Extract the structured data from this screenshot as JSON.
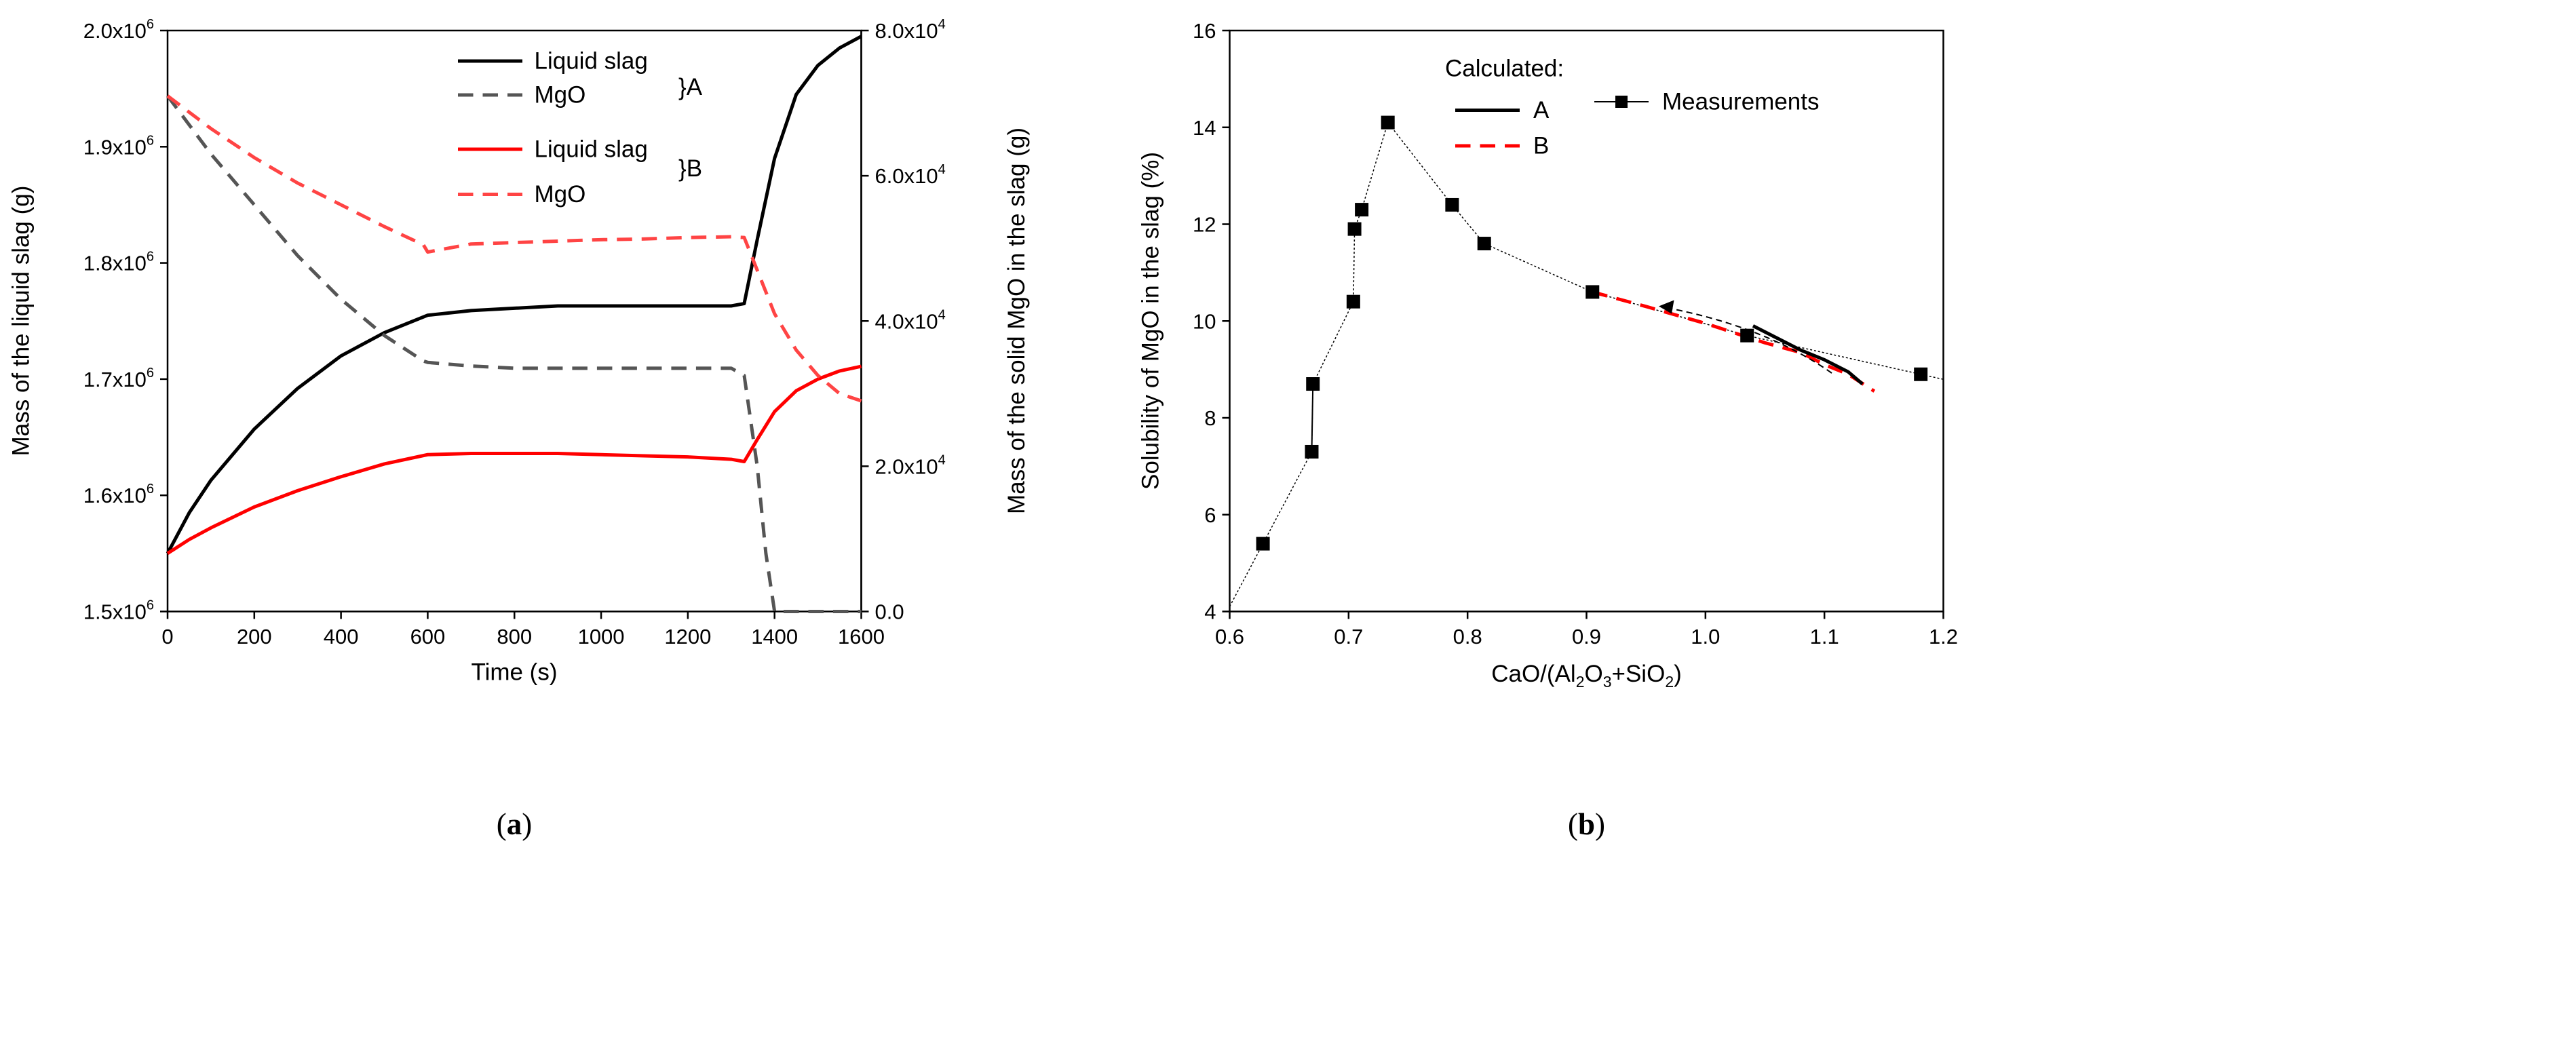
{
  "figure": {
    "panel_labels": [
      {
        "open": "(",
        "letter": "a",
        "close": ")"
      },
      {
        "open": "(",
        "letter": "b",
        "close": ")"
      }
    ]
  },
  "chart_data": [
    {
      "type": "line",
      "panel": "a",
      "xlabel": "Time (s)",
      "ylabel": "Mass of the liquid slag (g)",
      "y2label": "Mass of the solid MgO in the slag (g)",
      "xlim": [
        0,
        1600
      ],
      "ylim": [
        1500000,
        2000000
      ],
      "y2lim": [
        0,
        80000
      ],
      "x_ticks": [
        "0",
        "200",
        "400",
        "600",
        "800",
        "1000",
        "1200",
        "1400",
        "1600"
      ],
      "y_ticks": [
        {
          "mant": "1.5x10",
          "exp": "6"
        },
        {
          "mant": "1.6x10",
          "exp": "6"
        },
        {
          "mant": "1.7x10",
          "exp": "6"
        },
        {
          "mant": "1.8x10",
          "exp": "6"
        },
        {
          "mant": "1.9x10",
          "exp": "6"
        },
        {
          "mant": "2.0x10",
          "exp": "6"
        }
      ],
      "y2_ticks": [
        {
          "mant": "0.0",
          "exp": ""
        },
        {
          "mant": "2.0x10",
          "exp": "4"
        },
        {
          "mant": "4.0x10",
          "exp": "4"
        },
        {
          "mant": "6.0x10",
          "exp": "4"
        },
        {
          "mant": "8.0x10",
          "exp": "4"
        }
      ],
      "legend": {
        "placement": "top-center",
        "group_a": "}A",
        "group_b": "}B",
        "entries": [
          "Liquid slag",
          "MgO",
          "Liquid slag",
          "MgO"
        ]
      },
      "series": [
        {
          "name": "Liquid slag",
          "group": "A",
          "axis": "left",
          "color": "#000000",
          "dash": "solid",
          "x": [
            0,
            50,
            100,
            200,
            300,
            400,
            500,
            600,
            700,
            800,
            900,
            1000,
            1100,
            1200,
            1300,
            1330,
            1360,
            1400,
            1450,
            1500,
            1550,
            1600
          ],
          "y": [
            1550000,
            1585000,
            1613000,
            1657000,
            1692000,
            1720000,
            1740000,
            1755000,
            1759000,
            1761000,
            1763000,
            1763000,
            1763000,
            1763000,
            1763000,
            1765000,
            1820000,
            1890000,
            1945000,
            1970000,
            1985000,
            1995000
          ]
        },
        {
          "name": "MgO",
          "group": "A",
          "axis": "right",
          "color": "#555555",
          "dash": "dashed",
          "x": [
            0,
            100,
            200,
            300,
            400,
            500,
            590,
            600,
            700,
            800,
            900,
            1000,
            1100,
            1200,
            1300,
            1330,
            1360,
            1380,
            1400,
            1450,
            1500,
            1600
          ],
          "y": [
            71000,
            63000,
            56000,
            49000,
            43000,
            38000,
            34500,
            34300,
            33800,
            33500,
            33500,
            33500,
            33500,
            33500,
            33500,
            32500,
            20000,
            8000,
            0,
            0,
            0,
            0
          ]
        },
        {
          "name": "Liquid slag",
          "group": "B",
          "axis": "left",
          "color": "#ff0000",
          "dash": "solid",
          "x": [
            0,
            50,
            100,
            200,
            300,
            400,
            500,
            600,
            700,
            800,
            900,
            1000,
            1100,
            1200,
            1300,
            1330,
            1360,
            1400,
            1450,
            1500,
            1550,
            1600
          ],
          "y": [
            1550000,
            1562000,
            1572000,
            1590000,
            1604000,
            1616000,
            1627000,
            1635000,
            1636000,
            1636000,
            1636000,
            1635000,
            1634000,
            1633000,
            1631000,
            1629000,
            1648000,
            1672000,
            1690000,
            1700000,
            1707000,
            1711000
          ]
        },
        {
          "name": "MgO",
          "group": "B",
          "axis": "right",
          "color": "#ff4444",
          "dash": "dashed",
          "x": [
            0,
            100,
            200,
            300,
            400,
            500,
            590,
            600,
            700,
            800,
            900,
            1000,
            1100,
            1200,
            1300,
            1330,
            1360,
            1400,
            1450,
            1500,
            1550,
            1600
          ],
          "y": [
            71000,
            66500,
            62500,
            59000,
            56000,
            53000,
            50500,
            49500,
            50600,
            50800,
            51000,
            51200,
            51300,
            51500,
            51600,
            51500,
            47000,
            41000,
            36000,
            32500,
            30000,
            29000
          ]
        }
      ]
    },
    {
      "type": "line",
      "panel": "b",
      "xlabel_parts": {
        "a": "CaO/(Al",
        "b": "2",
        "c": "O",
        "d": "3",
        "e": "+SiO",
        "f": "2",
        "g": ")"
      },
      "ylabel": "Solubility of MgO in the slag (%)",
      "xlim": [
        0.6,
        1.2
      ],
      "ylim": [
        4,
        16
      ],
      "x_ticks": [
        "0.6",
        "0.7",
        "0.8",
        "0.9",
        "1.0",
        "1.1",
        "1.2"
      ],
      "y_ticks": [
        "4",
        "6",
        "8",
        "10",
        "12",
        "14",
        "16"
      ],
      "legend": {
        "placement": "top",
        "title": "Calculated:",
        "entries": [
          "A",
          "B",
          "Measurements"
        ]
      },
      "series": [
        {
          "name": "Measurements",
          "style": "dotted-line-square-markers",
          "color": "#000000",
          "x": [
            0.628,
            0.669,
            0.67,
            0.704,
            0.705,
            0.711,
            0.733,
            0.787,
            0.814,
            0.905,
            1.035,
            1.181
          ],
          "y": [
            5.4,
            7.3,
            8.7,
            10.4,
            11.9,
            12.3,
            14.1,
            12.4,
            11.6,
            10.6,
            9.7,
            8.9
          ]
        },
        {
          "name": "A",
          "style": "solid",
          "color": "#000000",
          "x": [
            1.04,
            1.06,
            1.08,
            1.1,
            1.12,
            1.132
          ],
          "y": [
            9.9,
            9.65,
            9.4,
            9.2,
            8.95,
            8.7
          ]
        },
        {
          "name": "B",
          "style": "dashed",
          "color": "#ff0000",
          "x": [
            0.905,
            0.95,
            1.0,
            1.05,
            1.08,
            1.1,
            1.12,
            1.142
          ],
          "y": [
            10.6,
            10.3,
            9.95,
            9.55,
            9.35,
            9.1,
            8.9,
            8.55
          ]
        }
      ]
    }
  ]
}
